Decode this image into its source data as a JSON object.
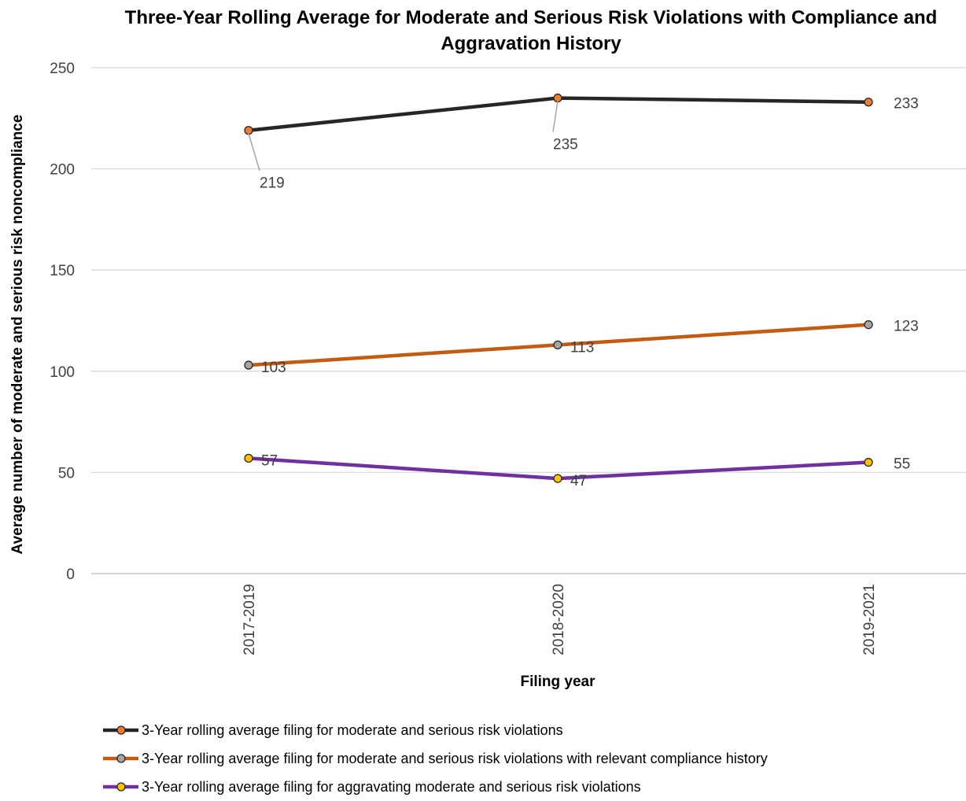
{
  "chart_data": {
    "type": "line",
    "title_line1": "Three-Year Rolling Average for Moderate and Serious Risk Violations with Compliance and",
    "title_line2": "Aggravation History",
    "xlabel": "Filing year",
    "ylabel": "Average number of moderate and serious risk noncompliance",
    "categories": [
      "2017-2019",
      "2018-2020",
      "2019-2021"
    ],
    "ylim": [
      0,
      250
    ],
    "yticks": [
      0,
      50,
      100,
      150,
      200,
      250
    ],
    "grid": true,
    "legend_position": "bottom",
    "series": [
      {
        "name": "3-Year rolling average filing for moderate and serious risk violations",
        "values": [
          219,
          235,
          233
        ],
        "color": "#262626",
        "marker_fill": "#ED7D31"
      },
      {
        "name": "3-Year rolling average filing for moderate and serious risk violations with relevant compliance history",
        "values": [
          103,
          113,
          123
        ],
        "color": "#C55A11",
        "marker_fill": "#A5A5A5"
      },
      {
        "name": "3-Year rolling average filing for aggravating moderate and serious risk violations",
        "values": [
          57,
          47,
          55
        ],
        "color": "#7030A0",
        "marker_fill": "#FFC000"
      }
    ]
  }
}
